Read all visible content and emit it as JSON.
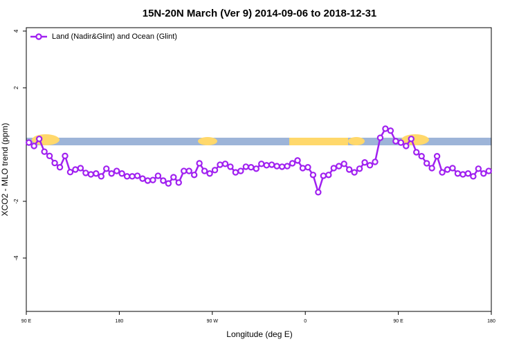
{
  "chart_data": {
    "type": "line",
    "title": "15N-20N March (Ver 9)   2014-09-06 to 2018-12-31",
    "x_label": "Longitude (deg E)",
    "y_label": "XCO2 - MLO trend (ppm)",
    "xlim": [
      90,
      540
    ],
    "ylim": [
      -5.88,
      4.12
    ],
    "xticks": [
      {
        "value": 90,
        "label": "90 E"
      },
      180,
      {
        "value": 270,
        "label": "90 W"
      },
      {
        "value": 360,
        "label": "0"
      },
      {
        "value": 450,
        "label": "90 E"
      },
      {
        "value": 540,
        "label": "180"
      }
    ],
    "yticks": [
      -4,
      -2,
      2,
      4
    ],
    "legend": "top-left",
    "x": [
      92.5,
      97.5,
      102.5,
      107.5,
      112.5,
      117.5,
      122.5,
      127.5,
      132.5,
      137.5,
      142.5,
      147.5,
      152.5,
      157.5,
      162.5,
      167.5,
      172.5,
      177.5,
      182.5,
      187.5,
      192.5,
      197.5,
      202.5,
      207.5,
      212.5,
      217.5,
      222.5,
      227.5,
      232.5,
      237.5,
      242.5,
      247.5,
      252.5,
      257.5,
      262.5,
      267.5,
      272.5,
      277.5,
      282.5,
      287.5,
      292.5,
      297.5,
      302.5,
      307.5,
      312.5,
      317.5,
      322.5,
      327.5,
      332.5,
      337.5,
      342.5,
      347.5,
      352.5,
      357.5,
      362.5,
      367.5,
      372.5,
      377.5,
      382.5,
      387.5,
      392.5,
      397.5,
      402.5,
      407.5,
      412.5,
      417.5,
      422.5,
      427.5,
      432.5,
      437.5,
      442.5,
      447.5,
      452.5,
      457.5,
      462.5,
      467.5,
      472.5,
      477.5,
      482.5,
      487.5,
      492.5,
      497.5,
      502.5,
      507.5,
      512.5,
      517.5,
      522.5,
      527.5,
      532.5,
      537.5
    ],
    "series": [
      {
        "name": "Land (Nadir&Glint) and Ocean (Glint)",
        "color": "#a020f0",
        "values": [
          0.07,
          -0.05,
          0.2,
          -0.25,
          -0.4,
          -0.65,
          -0.8,
          -0.4,
          -0.97,
          -0.88,
          -0.83,
          -1.0,
          -1.05,
          -1.02,
          -1.12,
          -0.85,
          -1.02,
          -0.93,
          -1.02,
          -1.12,
          -1.12,
          -1.1,
          -1.2,
          -1.27,
          -1.25,
          -1.1,
          -1.27,
          -1.37,
          -1.15,
          -1.34,
          -0.93,
          -0.93,
          -1.07,
          -0.66,
          -0.93,
          -1.02,
          -0.9,
          -0.71,
          -0.68,
          -0.78,
          -0.98,
          -0.93,
          -0.78,
          -0.8,
          -0.85,
          -0.68,
          -0.73,
          -0.71,
          -0.76,
          -0.78,
          -0.76,
          -0.66,
          -0.56,
          -0.83,
          -0.8,
          -1.07,
          -1.68,
          -1.1,
          -1.07,
          -0.83,
          -0.76,
          -0.68,
          -0.88,
          -0.98,
          -0.85,
          -0.63,
          -0.73,
          -0.61,
          0.24,
          0.56,
          0.49,
          0.12,
          0.07,
          -0.05,
          0.2,
          -0.27,
          -0.41,
          -0.66,
          -0.83,
          -0.41,
          -0.98,
          -0.88,
          -0.83,
          -1.02,
          -1.05,
          -1.02,
          -1.12,
          -0.85,
          -1.02,
          -0.93
        ]
      }
    ]
  }
}
